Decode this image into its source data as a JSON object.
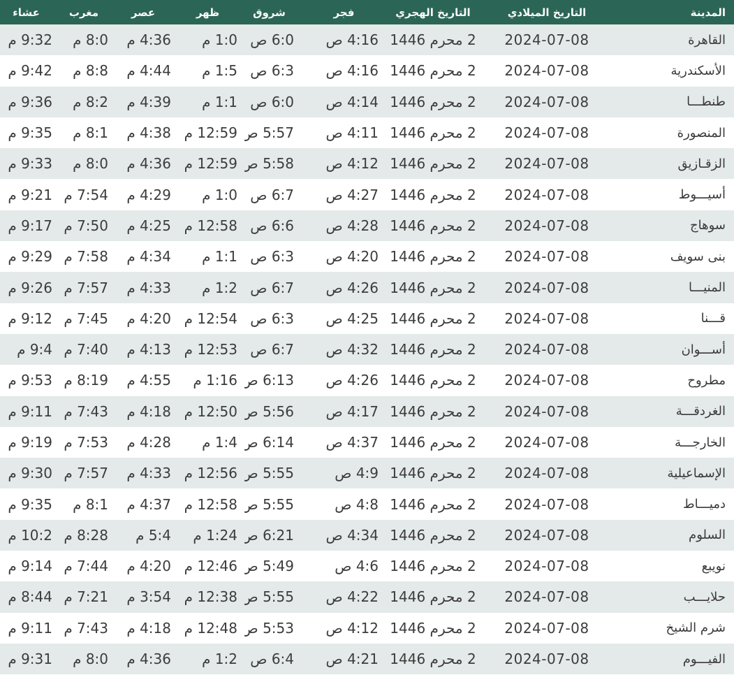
{
  "colors": {
    "header_bg": "#2B6556",
    "header_text": "#FAFAF7",
    "row_stripe_bg": "#E4EAE9",
    "row_white_bg": "#FFFFFF",
    "cell_text": "#3C3C3C"
  },
  "table": {
    "columns": [
      {
        "key": "city",
        "label": "المدينة"
      },
      {
        "key": "gregorian_date",
        "label": "التاريخ الميلادي"
      },
      {
        "key": "hijri_date",
        "label": "التاريخ الهجري"
      },
      {
        "key": "fajr",
        "label": "فجر"
      },
      {
        "key": "sunrise",
        "label": "شروق"
      },
      {
        "key": "dhuhr",
        "label": "ظهر"
      },
      {
        "key": "asr",
        "label": "عصر"
      },
      {
        "key": "maghrib",
        "label": "مغرب"
      },
      {
        "key": "isha",
        "label": "عشاء"
      }
    ],
    "rows": [
      {
        "city": "القاهرة",
        "gregorian_date": "2024-07-08",
        "hijri_date": "2 محرم 1446",
        "fajr": "4:16 ص",
        "sunrise": "6:0 ص",
        "dhuhr": "1:0 م",
        "asr": "4:36 م",
        "maghrib": "8:0 م",
        "isha": "9:32 م"
      },
      {
        "city": "الأسكندرية",
        "gregorian_date": "2024-07-08",
        "hijri_date": "2 محرم 1446",
        "fajr": "4:16 ص",
        "sunrise": "6:3 ص",
        "dhuhr": "1:5 م",
        "asr": "4:44 م",
        "maghrib": "8:8 م",
        "isha": "9:42 م"
      },
      {
        "city": "طنطـــا",
        "gregorian_date": "2024-07-08",
        "hijri_date": "2 محرم 1446",
        "fajr": "4:14 ص",
        "sunrise": "6:0 ص",
        "dhuhr": "1:1 م",
        "asr": "4:39 م",
        "maghrib": "8:2 م",
        "isha": "9:36 م"
      },
      {
        "city": "المنصورة",
        "gregorian_date": "2024-07-08",
        "hijri_date": "2 محرم 1446",
        "fajr": "4:11 ص",
        "sunrise": "5:57 ص",
        "dhuhr": "12:59 م",
        "asr": "4:38 م",
        "maghrib": "8:1 م",
        "isha": "9:35 م"
      },
      {
        "city": "الزقـازيق",
        "gregorian_date": "2024-07-08",
        "hijri_date": "2 محرم 1446",
        "fajr": "4:12 ص",
        "sunrise": "5:58 ص",
        "dhuhr": "12:59 م",
        "asr": "4:36 م",
        "maghrib": "8:0 م",
        "isha": "9:33 م"
      },
      {
        "city": "أسيـــوط",
        "gregorian_date": "2024-07-08",
        "hijri_date": "2 محرم 1446",
        "fajr": "4:27 ص",
        "sunrise": "6:7 ص",
        "dhuhr": "1:0 م",
        "asr": "4:29 م",
        "maghrib": "7:54 م",
        "isha": "9:21 م"
      },
      {
        "city": "سوهاج",
        "gregorian_date": "2024-07-08",
        "hijri_date": "2 محرم 1446",
        "fajr": "4:28 ص",
        "sunrise": "6:6 ص",
        "dhuhr": "12:58 م",
        "asr": "4:25 م",
        "maghrib": "7:50 م",
        "isha": "9:17 م"
      },
      {
        "city": "بنى سويف",
        "gregorian_date": "2024-07-08",
        "hijri_date": "2 محرم 1446",
        "fajr": "4:20 ص",
        "sunrise": "6:3 ص",
        "dhuhr": "1:1 م",
        "asr": "4:34 م",
        "maghrib": "7:58 م",
        "isha": "9:29 م"
      },
      {
        "city": "المنيـــا",
        "gregorian_date": "2024-07-08",
        "hijri_date": "2 محرم 1446",
        "fajr": "4:26 ص",
        "sunrise": "6:7 ص",
        "dhuhr": "1:2 م",
        "asr": "4:33 م",
        "maghrib": "7:57 م",
        "isha": "9:26 م"
      },
      {
        "city": "قـــنا",
        "gregorian_date": "2024-07-08",
        "hijri_date": "2 محرم 1446",
        "fajr": "4:25 ص",
        "sunrise": "6:3 ص",
        "dhuhr": "12:54 م",
        "asr": "4:20 م",
        "maghrib": "7:45 م",
        "isha": "9:12 م"
      },
      {
        "city": "أســـوان",
        "gregorian_date": "2024-07-08",
        "hijri_date": "2 محرم 1446",
        "fajr": "4:32 ص",
        "sunrise": "6:7 ص",
        "dhuhr": "12:53 م",
        "asr": "4:13 م",
        "maghrib": "7:40 م",
        "isha": "9:4 م"
      },
      {
        "city": "مطروح",
        "gregorian_date": "2024-07-08",
        "hijri_date": "2 محرم 1446",
        "fajr": "4:26 ص",
        "sunrise": "6:13 ص",
        "dhuhr": "1:16 م",
        "asr": "4:55 م",
        "maghrib": "8:19 م",
        "isha": "9:53 م"
      },
      {
        "city": "الغردقـــة",
        "gregorian_date": "2024-07-08",
        "hijri_date": "2 محرم 1446",
        "fajr": "4:17 ص",
        "sunrise": "5:56 ص",
        "dhuhr": "12:50 م",
        "asr": "4:18 م",
        "maghrib": "7:43 م",
        "isha": "9:11 م"
      },
      {
        "city": "الخارجـــة",
        "gregorian_date": "2024-07-08",
        "hijri_date": "2 محرم 1446",
        "fajr": "4:37 ص",
        "sunrise": "6:14 ص",
        "dhuhr": "1:4 م",
        "asr": "4:28 م",
        "maghrib": "7:53 م",
        "isha": "9:19 م"
      },
      {
        "city": "الإسماعيلية",
        "gregorian_date": "2024-07-08",
        "hijri_date": "2 محرم 1446",
        "fajr": "4:9 ص",
        "sunrise": "5:55 ص",
        "dhuhr": "12:56 م",
        "asr": "4:33 م",
        "maghrib": "7:57 م",
        "isha": "9:30 م"
      },
      {
        "city": "دميـــاط",
        "gregorian_date": "2024-07-08",
        "hijri_date": "2 محرم 1446",
        "fajr": "4:8 ص",
        "sunrise": "5:55 ص",
        "dhuhr": "12:58 م",
        "asr": "4:37 م",
        "maghrib": "8:1 م",
        "isha": "9:35 م"
      },
      {
        "city": "السلوم",
        "gregorian_date": "2024-07-08",
        "hijri_date": "2 محرم 1446",
        "fajr": "4:34 ص",
        "sunrise": "6:21 ص",
        "dhuhr": "1:24 م",
        "asr": "5:4 م",
        "maghrib": "8:28 م",
        "isha": "10:2 م"
      },
      {
        "city": "نويبع",
        "gregorian_date": "2024-07-08",
        "hijri_date": "2 محرم 1446",
        "fajr": "4:6 ص",
        "sunrise": "5:49 ص",
        "dhuhr": "12:46 م",
        "asr": "4:20 م",
        "maghrib": "7:44 م",
        "isha": "9:14 م"
      },
      {
        "city": "حلايـــب",
        "gregorian_date": "2024-07-08",
        "hijri_date": "2 محرم 1446",
        "fajr": "4:22 ص",
        "sunrise": "5:55 ص",
        "dhuhr": "12:38 م",
        "asr": "3:54 م",
        "maghrib": "7:21 م",
        "isha": "8:44 م"
      },
      {
        "city": "شرم الشيخ",
        "gregorian_date": "2024-07-08",
        "hijri_date": "2 محرم 1446",
        "fajr": "4:12 ص",
        "sunrise": "5:53 ص",
        "dhuhr": "12:48 م",
        "asr": "4:18 م",
        "maghrib": "7:43 م",
        "isha": "9:11 م"
      },
      {
        "city": "الفيـــوم",
        "gregorian_date": "2024-07-08",
        "hijri_date": "2 محرم 1446",
        "fajr": "4:21 ص",
        "sunrise": "6:4 ص",
        "dhuhr": "1:2 م",
        "asr": "4:36 م",
        "maghrib": "8:0 م",
        "isha": "9:31 م"
      }
    ]
  }
}
